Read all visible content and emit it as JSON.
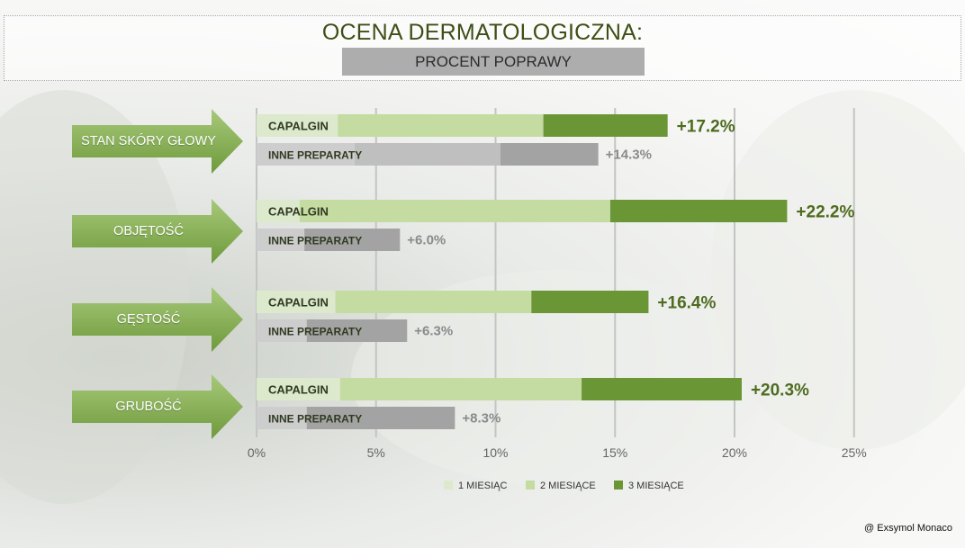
{
  "header": {
    "title": "OCENA DERMATOLOGICZNA:",
    "subtitle": "PROCENT POPRAWY"
  },
  "categories_labels": [
    "STAN SKÓRY GŁOWY",
    "OBJĘTOŚĆ",
    "GĘSTOŚĆ",
    "GRUBOŚĆ"
  ],
  "footer": {
    "credit": "@ Exsymol Monaco"
  },
  "colors": {
    "month1": "#dde9cc",
    "month2": "#c4dba2",
    "month3": "#6b9636",
    "other_light": "#cdcdcd",
    "other_mid": "#bfbfbf",
    "other_dark": "#a3a3a3",
    "capalgin_total_text": "#4e6b1f",
    "other_total_text": "#8a8a8a",
    "arrow": "#7ea94d",
    "grid": "#c4c4c4"
  },
  "chart_data": {
    "type": "bar",
    "orientation": "horizontal",
    "stacked": true,
    "title": "OCENA DERMATOLOGICZNA:",
    "subtitle": "PROCENT POPRAWY",
    "xlim": [
      0,
      25
    ],
    "x_ticks": [
      "0%",
      "5%",
      "10%",
      "15%",
      "20%",
      "25%"
    ],
    "x_tick_values": [
      0,
      5,
      10,
      15,
      20,
      25
    ],
    "legend": [
      "1 MIESIĄC",
      "2 MIESIĄCE",
      "3 MIESIĄCE"
    ],
    "legend_position": "bottom",
    "groups": [
      {
        "category": "STAN SKÓRY GŁOWY",
        "bars": [
          {
            "label": "CAPALGIN",
            "segments": [
              3.4,
              8.6,
              5.2
            ],
            "total_label": "+17.2%",
            "kind": "capalgin"
          },
          {
            "label": "INNE PREPARATY",
            "segments": [
              4.1,
              6.1,
              4.1
            ],
            "total_label": "+14.3%",
            "kind": "other"
          }
        ]
      },
      {
        "category": "OBJĘTOŚĆ",
        "bars": [
          {
            "label": "CAPALGIN",
            "segments": [
              1.8,
              13.0,
              7.4
            ],
            "total_label": "+22.2%",
            "kind": "capalgin"
          },
          {
            "label": "INNE PREPARATY",
            "segments": [
              2.0,
              0.0,
              4.0
            ],
            "total_label": "+6.0%",
            "kind": "other"
          }
        ]
      },
      {
        "category": "GĘSTOŚĆ",
        "bars": [
          {
            "label": "CAPALGIN",
            "segments": [
              3.3,
              8.2,
              4.9
            ],
            "total_label": "+16.4%",
            "kind": "capalgin"
          },
          {
            "label": "INNE PREPARATY",
            "segments": [
              2.1,
              0.0,
              4.2
            ],
            "total_label": "+6.3%",
            "kind": "other"
          }
        ]
      },
      {
        "category": "GRUBOŚĆ",
        "bars": [
          {
            "label": "CAPALGIN",
            "segments": [
              3.5,
              10.1,
              6.7
            ],
            "total_label": "+20.3%",
            "kind": "capalgin"
          },
          {
            "label": "INNE PREPARATY",
            "segments": [
              2.1,
              0.0,
              6.2
            ],
            "total_label": "+8.3%",
            "kind": "other"
          }
        ]
      }
    ]
  }
}
